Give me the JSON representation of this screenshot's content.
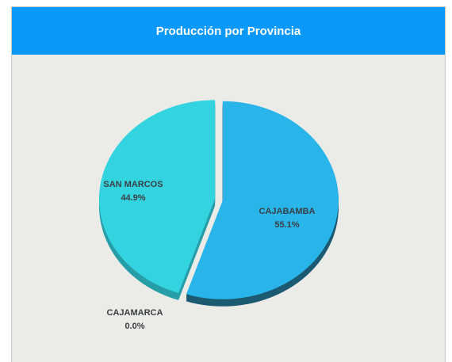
{
  "chart_data": {
    "type": "pie",
    "title": "Producción por Provincia",
    "categories": [
      "CAJABAMBA",
      "SAN MARCOS",
      "CAJAMARCA"
    ],
    "values": [
      55.1,
      44.9,
      0.0
    ],
    "value_labels": [
      "55.1%",
      "44.9%",
      "0.0%"
    ],
    "colors": [
      "#29b4ea",
      "#33d4e0",
      "#8fd7e8"
    ],
    "depth_colors": [
      "#1c5a72",
      "#279ea8",
      "#5c9aa8"
    ]
  }
}
